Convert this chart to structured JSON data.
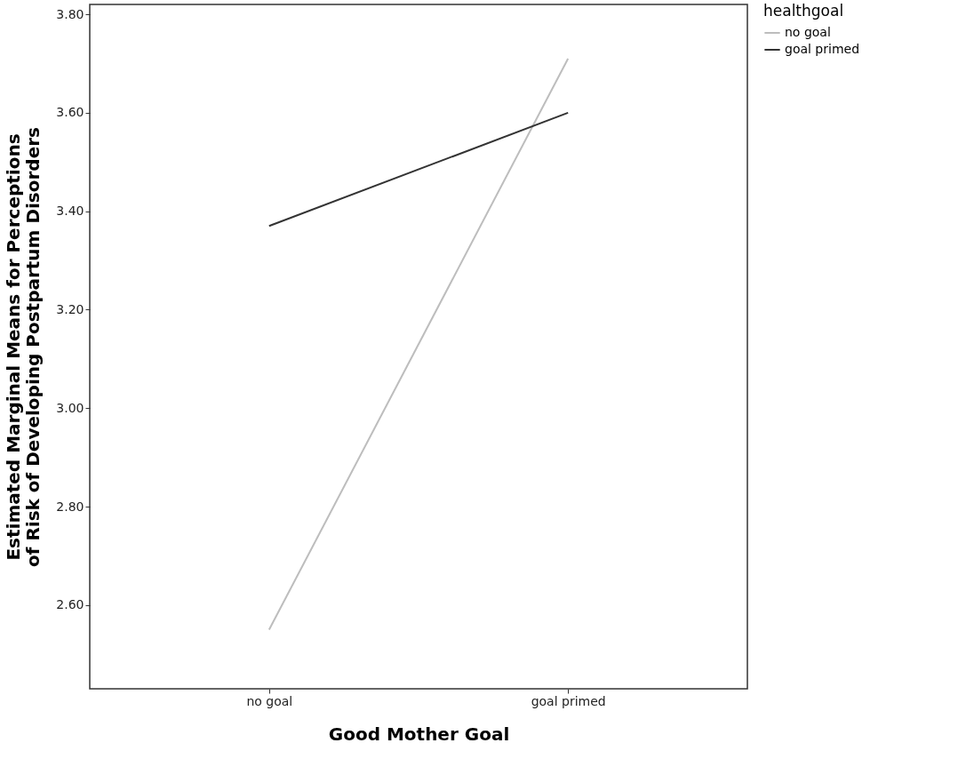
{
  "chart_data": {
    "type": "line",
    "xlabel": "Good Mother Goal",
    "ylabel": "Estimated Marginal Means for Perceptions\nof Risk of Developing Postpartum Disorders",
    "legend_title": "healthgoal",
    "categories": [
      "no goal",
      "goal primed"
    ],
    "series": [
      {
        "name": "no goal",
        "color": "#bdbdbd",
        "values": [
          2.55,
          3.71
        ]
      },
      {
        "name": "goal primed",
        "color": "#333333",
        "values": [
          3.37,
          3.6
        ]
      }
    ],
    "ylim": [
      2.43,
      3.82
    ],
    "yticks": [
      {
        "value": 2.6,
        "label": "2.60"
      },
      {
        "value": 2.8,
        "label": "2.80"
      },
      {
        "value": 3.0,
        "label": "3.00"
      },
      {
        "value": 3.2,
        "label": "3.20"
      },
      {
        "value": 3.4,
        "label": "3.40"
      },
      {
        "value": 3.6,
        "label": "3.60"
      },
      {
        "value": 3.8,
        "label": "3.80"
      }
    ],
    "grid": false,
    "legend": "top right",
    "marker": "none",
    "line_style": "solid"
  }
}
